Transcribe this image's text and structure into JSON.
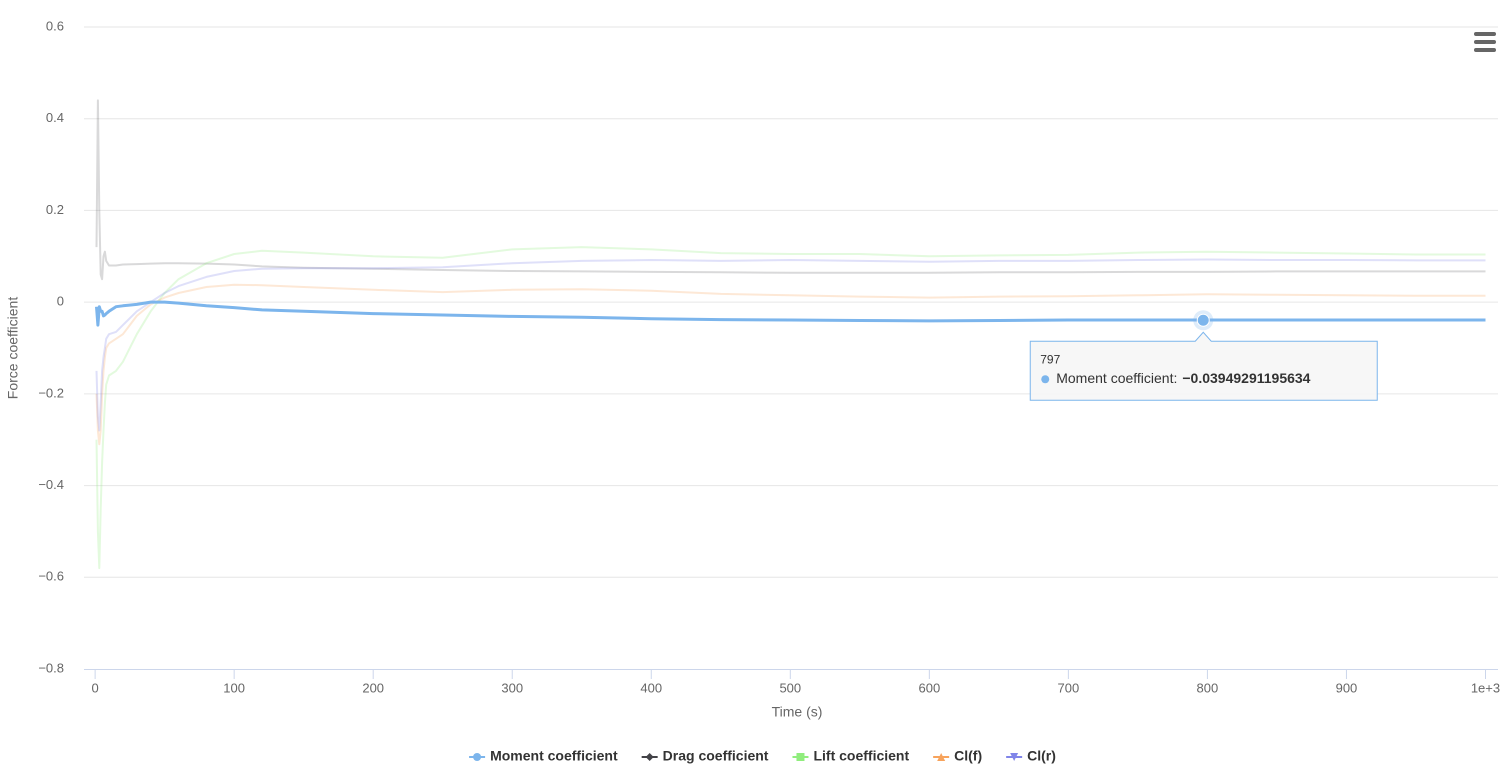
{
  "chart_data": {
    "type": "line",
    "x_label": "Time (s)",
    "y_label": "Force coefficient",
    "x": [
      1,
      2,
      3,
      4,
      5,
      6,
      7,
      8,
      10,
      15,
      20,
      30,
      40,
      50,
      60,
      80,
      100,
      120,
      150,
      200,
      250,
      300,
      350,
      400,
      450,
      500,
      550,
      600,
      650,
      700,
      750,
      800,
      850,
      900,
      950,
      1000
    ],
    "series": [
      {
        "name": "Moment coefficient",
        "color": "#7cb5ec",
        "marker": "circle",
        "opacity": 1,
        "values": [
          -0.01,
          -0.05,
          -0.01,
          -0.02,
          -0.02,
          -0.03,
          -0.028,
          -0.025,
          -0.02,
          -0.01,
          -0.008,
          -0.005,
          0,
          0,
          -0.002,
          -0.008,
          -0.012,
          -0.017,
          -0.02,
          -0.025,
          -0.028,
          -0.031,
          -0.033,
          -0.036,
          -0.038,
          -0.039,
          -0.04,
          -0.041,
          -0.04,
          -0.039,
          -0.039,
          -0.039,
          -0.039,
          -0.039,
          -0.039,
          -0.039
        ]
      },
      {
        "name": "Drag coefficient",
        "color": "#434348",
        "marker": "diamond",
        "opacity": 0.2,
        "values": [
          0.12,
          0.44,
          0.2,
          0.06,
          0.05,
          0.1,
          0.11,
          0.09,
          0.08,
          0.08,
          0.082,
          0.083,
          0.084,
          0.085,
          0.085,
          0.084,
          0.082,
          0.078,
          0.075,
          0.073,
          0.07,
          0.068,
          0.067,
          0.066,
          0.065,
          0.064,
          0.064,
          0.064,
          0.065,
          0.065,
          0.066,
          0.066,
          0.067,
          0.067,
          0.067,
          0.067
        ]
      },
      {
        "name": "Lift coefficient",
        "color": "#90ed7d",
        "marker": "square",
        "opacity": 0.25,
        "values": [
          -0.3,
          -0.5,
          -0.58,
          -0.45,
          -0.35,
          -0.28,
          -0.22,
          -0.18,
          -0.16,
          -0.15,
          -0.13,
          -0.07,
          -0.02,
          0.02,
          0.05,
          0.085,
          0.105,
          0.112,
          0.108,
          0.1,
          0.097,
          0.115,
          0.12,
          0.115,
          0.107,
          0.105,
          0.105,
          0.1,
          0.102,
          0.103,
          0.108,
          0.11,
          0.108,
          0.106,
          0.104,
          0.104
        ]
      },
      {
        "name": "Cl(f)",
        "color": "#f7a35c",
        "marker": "triangle",
        "opacity": 0.25,
        "values": [
          -0.2,
          -0.28,
          -0.31,
          -0.28,
          -0.2,
          -0.15,
          -0.12,
          -0.1,
          -0.09,
          -0.08,
          -0.07,
          -0.03,
          -0.005,
          0.01,
          0.02,
          0.033,
          0.038,
          0.037,
          0.033,
          0.027,
          0.022,
          0.027,
          0.028,
          0.025,
          0.018,
          0.015,
          0.012,
          0.01,
          0.012,
          0.013,
          0.015,
          0.017,
          0.016,
          0.015,
          0.014,
          0.014
        ]
      },
      {
        "name": "Cl(r)",
        "color": "#8085e9",
        "marker": "triangle-down",
        "opacity": 0.25,
        "values": [
          -0.15,
          -0.25,
          -0.28,
          -0.22,
          -0.15,
          -0.12,
          -0.1,
          -0.08,
          -0.07,
          -0.065,
          -0.05,
          -0.02,
          0,
          0.02,
          0.035,
          0.055,
          0.068,
          0.073,
          0.074,
          0.074,
          0.076,
          0.085,
          0.09,
          0.092,
          0.09,
          0.092,
          0.09,
          0.088,
          0.09,
          0.09,
          0.092,
          0.093,
          0.092,
          0.092,
          0.091,
          0.091
        ]
      }
    ],
    "xlim": [
      -8,
      1009
    ],
    "xticks": [
      0,
      100,
      200,
      300,
      400,
      500,
      600,
      700,
      800,
      900,
      {
        "value": 1000,
        "label": "1e+3"
      }
    ],
    "ylim": [
      -0.8,
      0.6
    ],
    "yticks": [
      {
        "value": -0.8,
        "label": "−0.8"
      },
      {
        "value": -0.6,
        "label": "−0.6"
      },
      {
        "value": -0.4,
        "label": "−0.4"
      },
      {
        "value": -0.2,
        "label": "−0.2"
      },
      0,
      0.2,
      0.4,
      0.6
    ],
    "grid": true,
    "legend": "bottom",
    "tooltip": {
      "series": 0,
      "x": 797,
      "name": "Moment coefficient:",
      "value": -0.03949291195634,
      "value_label": "−0.03949291195634"
    }
  }
}
